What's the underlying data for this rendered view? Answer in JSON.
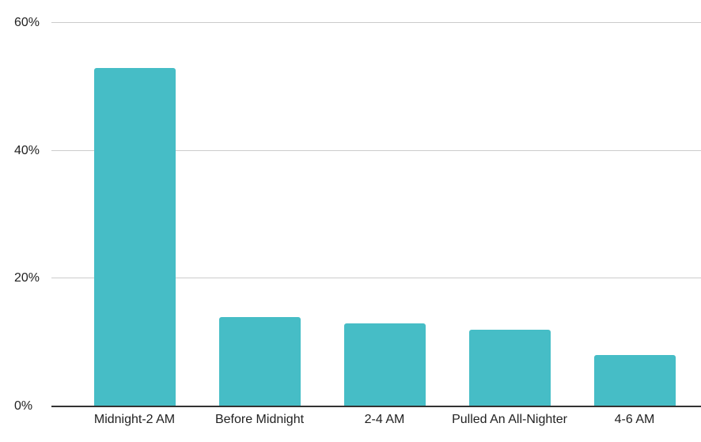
{
  "chart_data": {
    "type": "bar",
    "title": "",
    "xlabel": "",
    "ylabel": "",
    "categories": [
      "Midnight-2 AM",
      "Before Midnight",
      "2-4 AM",
      "Pulled An All-Nighter",
      "4-6 AM"
    ],
    "values": [
      53,
      14,
      13,
      12,
      8
    ],
    "value_unit": "%",
    "ylim": [
      0,
      60
    ],
    "yticks": [
      0,
      20,
      40,
      60
    ],
    "ytick_labels": [
      "0%",
      "20%",
      "40%",
      "60%"
    ],
    "grid": true,
    "legend": false,
    "colors": {
      "bar": "#46bdc6",
      "gridline": "#cccccc",
      "axis_line": "#333333",
      "label_text": "#222222",
      "background": "#ffffff"
    }
  }
}
